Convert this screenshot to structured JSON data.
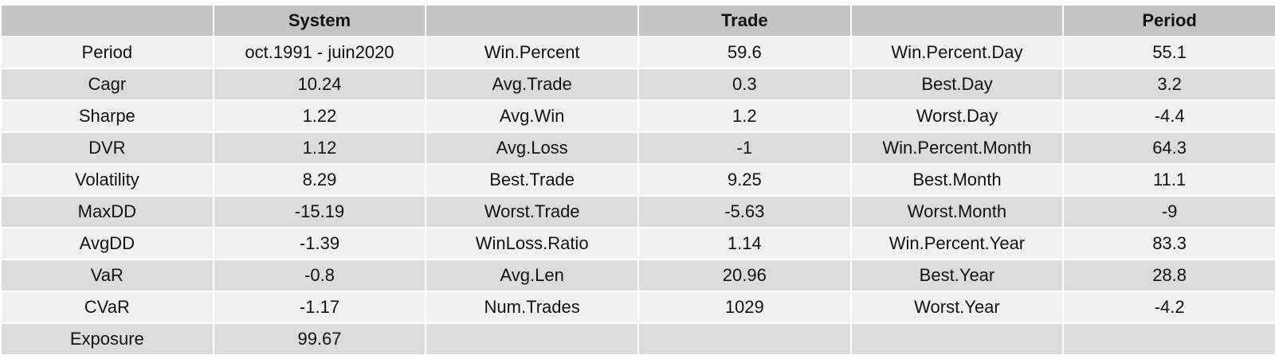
{
  "headers": [
    "",
    "System",
    "",
    "Trade",
    "",
    "Period"
  ],
  "rows": [
    [
      "Period",
      "oct.1991 - juin2020",
      "Win.Percent",
      "59.6",
      "Win.Percent.Day",
      "55.1"
    ],
    [
      "Cagr",
      "10.24",
      "Avg.Trade",
      "0.3",
      "Best.Day",
      "3.2"
    ],
    [
      "Sharpe",
      "1.22",
      "Avg.Win",
      "1.2",
      "Worst.Day",
      "-4.4"
    ],
    [
      "DVR",
      "1.12",
      "Avg.Loss",
      "-1",
      "Win.Percent.Month",
      "64.3"
    ],
    [
      "Volatility",
      "8.29",
      "Best.Trade",
      "9.25",
      "Best.Month",
      "11.1"
    ],
    [
      "MaxDD",
      "-15.19",
      "Worst.Trade",
      "-5.63",
      "Worst.Month",
      "-9"
    ],
    [
      "AvgDD",
      "-1.39",
      "WinLoss.Ratio",
      "1.14",
      "Win.Percent.Year",
      "83.3"
    ],
    [
      "VaR",
      "-0.8",
      "Avg.Len",
      "20.96",
      "Best.Year",
      "28.8"
    ],
    [
      "CVaR",
      "-1.17",
      "Num.Trades",
      "1029",
      "Worst.Year",
      "-4.2"
    ],
    [
      "Exposure",
      "99.67",
      "",
      "",
      "",
      ""
    ]
  ]
}
